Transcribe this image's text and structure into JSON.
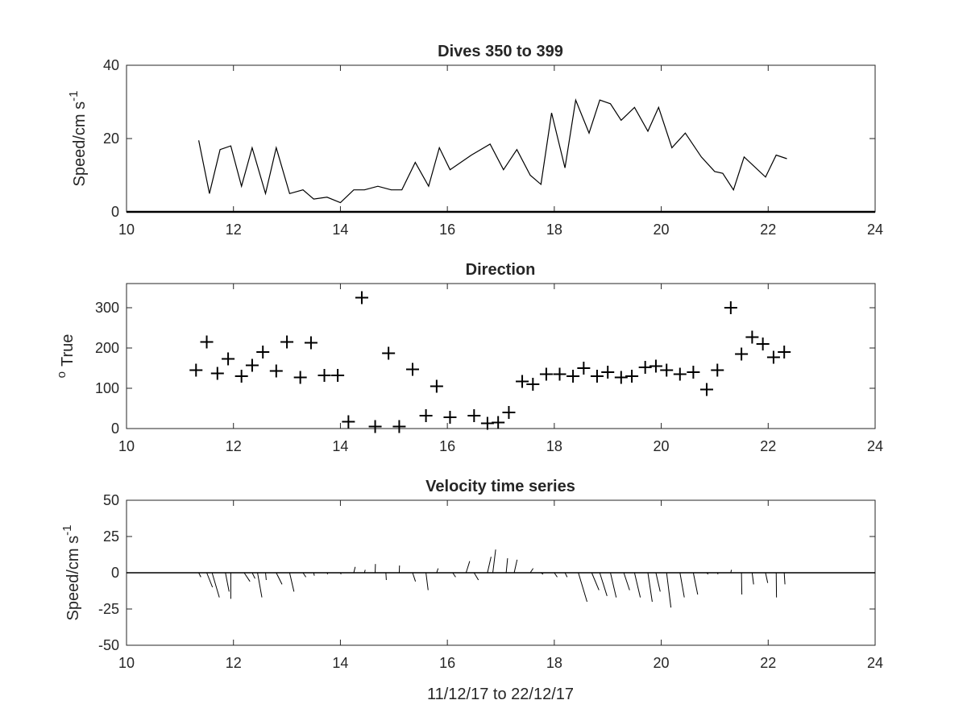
{
  "chart_data": [
    {
      "type": "line",
      "title": "Dives 350 to 399",
      "xlabel": "",
      "ylabel": "Speed/cm s",
      "ylabel_superscript": "-1",
      "xlim": [
        10,
        24
      ],
      "ylim": [
        0,
        40
      ],
      "xticks": [
        "10",
        "12",
        "14",
        "16",
        "18",
        "20",
        "22",
        "24"
      ],
      "yticks": [
        "0",
        "20",
        "40"
      ],
      "series": [
        {
          "x": [
            11.35,
            11.55,
            11.75,
            11.95,
            12.15,
            12.35,
            12.6,
            12.8,
            13.05,
            13.3,
            13.5,
            13.75,
            14.0,
            14.25,
            14.45,
            14.7,
            14.95,
            15.15,
            15.4,
            15.65,
            15.85,
            16.05,
            16.45,
            16.8,
            17.05,
            17.3,
            17.55,
            17.75,
            17.95,
            18.2,
            18.4,
            18.65,
            18.85,
            19.05,
            19.25,
            19.5,
            19.75,
            19.95,
            20.2,
            20.45,
            20.75,
            21.0,
            21.15,
            21.35,
            21.55,
            21.95,
            22.15,
            22.35
          ],
          "values": [
            19.5,
            5,
            17,
            18,
            7,
            17.5,
            5,
            17.5,
            5,
            6,
            3.5,
            4,
            2.5,
            6,
            6,
            7,
            6,
            6,
            13.5,
            7,
            17.5,
            11.5,
            15.5,
            18.5,
            11.5,
            17,
            10,
            7.5,
            27,
            12,
            30.5,
            21.5,
            30.5,
            29.5,
            25,
            28.5,
            22,
            28.5,
            17.5,
            21.5,
            15,
            11,
            10.5,
            6,
            15,
            9.5,
            15.5,
            14.5
          ]
        }
      ]
    },
    {
      "type": "scatter",
      "title": "Direction",
      "xlabel": "",
      "ylabel": "True",
      "ylabel_prefix_superscript": "o",
      "xlim": [
        10,
        24
      ],
      "ylim": [
        0,
        360
      ],
      "xticks": [
        "10",
        "12",
        "14",
        "16",
        "18",
        "20",
        "22",
        "24"
      ],
      "yticks": [
        "0",
        "100",
        "200",
        "300"
      ],
      "marker": "+",
      "series": [
        {
          "x": [
            11.3,
            11.5,
            11.7,
            11.9,
            12.15,
            12.35,
            12.55,
            12.8,
            13.0,
            13.25,
            13.45,
            13.7,
            13.95,
            14.15,
            14.4,
            14.65,
            14.9,
            15.1,
            15.35,
            15.6,
            15.8,
            16.05,
            16.5,
            16.75,
            16.95,
            17.15,
            17.4,
            17.6,
            17.85,
            18.1,
            18.35,
            18.55,
            18.8,
            19.0,
            19.25,
            19.45,
            19.7,
            19.9,
            20.1,
            20.35,
            20.6,
            20.85,
            21.05,
            21.3,
            21.5,
            21.7,
            21.9,
            22.1,
            22.3
          ],
          "values": [
            145,
            215,
            137,
            173,
            130,
            157,
            190,
            143,
            215,
            127,
            213,
            132,
            132,
            17,
            325,
            5,
            187,
            5,
            147,
            32,
            105,
            28,
            32,
            13,
            15,
            40,
            117,
            110,
            135,
            135,
            130,
            150,
            130,
            140,
            127,
            130,
            152,
            155,
            145,
            135,
            140,
            97,
            145,
            300,
            185,
            227,
            210,
            177,
            190
          ]
        }
      ]
    },
    {
      "type": "line",
      "subtype": "quiver",
      "title": "Velocity time series",
      "xlabel": "11/12/17 to 22/12/17",
      "ylabel": "Speed/cm s",
      "ylabel_superscript": "-1",
      "xlim": [
        10,
        24
      ],
      "ylim": [
        -50,
        50
      ],
      "xticks": [
        "10",
        "12",
        "14",
        "16",
        "18",
        "20",
        "22",
        "24"
      ],
      "yticks": [
        "-50",
        "-25",
        "0",
        "25",
        "50"
      ],
      "vectors": [
        {
          "x": 11.35,
          "u": 1.5,
          "v": -3
        },
        {
          "x": 11.5,
          "u": 4,
          "v": -10
        },
        {
          "x": 11.6,
          "u": 5,
          "v": -17
        },
        {
          "x": 11.85,
          "u": 2.5,
          "v": -13
        },
        {
          "x": 11.95,
          "u": 0,
          "v": -18
        },
        {
          "x": 12.2,
          "u": 4,
          "v": -6
        },
        {
          "x": 12.35,
          "u": 2,
          "v": -4
        },
        {
          "x": 12.45,
          "u": 3,
          "v": -17
        },
        {
          "x": 12.6,
          "u": 0.5,
          "v": -5
        },
        {
          "x": 12.8,
          "u": 4,
          "v": -8
        },
        {
          "x": 13.05,
          "u": 3,
          "v": -13
        },
        {
          "x": 13.3,
          "u": 2,
          "v": -3
        },
        {
          "x": 13.5,
          "u": 0.5,
          "v": -2
        },
        {
          "x": 13.75,
          "u": 0.5,
          "v": -1
        },
        {
          "x": 14.0,
          "u": 0.5,
          "v": -1
        },
        {
          "x": 14.25,
          "u": 1,
          "v": 4
        },
        {
          "x": 14.45,
          "u": 0.5,
          "v": 2
        },
        {
          "x": 14.65,
          "u": 0.2,
          "v": 6
        },
        {
          "x": 14.85,
          "u": 0.3,
          "v": -5
        },
        {
          "x": 15.1,
          "u": 0.2,
          "v": 5
        },
        {
          "x": 15.35,
          "u": 2,
          "v": -6
        },
        {
          "x": 15.6,
          "u": 1.5,
          "v": -12
        },
        {
          "x": 15.8,
          "u": 1,
          "v": 3
        },
        {
          "x": 16.1,
          "u": 2,
          "v": -3
        },
        {
          "x": 16.35,
          "u": 2.5,
          "v": 8
        },
        {
          "x": 16.5,
          "u": 3,
          "v": -5
        },
        {
          "x": 16.75,
          "u": 2.5,
          "v": 11
        },
        {
          "x": 16.85,
          "u": 2,
          "v": 16
        },
        {
          "x": 17.1,
          "u": 1,
          "v": 10
        },
        {
          "x": 17.25,
          "u": 2,
          "v": 9
        },
        {
          "x": 17.55,
          "u": 2,
          "v": 3
        },
        {
          "x": 17.75,
          "u": 1.5,
          "v": -1
        },
        {
          "x": 18.0,
          "u": 2,
          "v": -3
        },
        {
          "x": 18.2,
          "u": 1.5,
          "v": -3
        },
        {
          "x": 18.45,
          "u": 6,
          "v": -20
        },
        {
          "x": 18.7,
          "u": 5,
          "v": -12
        },
        {
          "x": 18.85,
          "u": 5,
          "v": -16
        },
        {
          "x": 19.05,
          "u": 4,
          "v": -17
        },
        {
          "x": 19.3,
          "u": 4,
          "v": -12
        },
        {
          "x": 19.5,
          "u": 4,
          "v": -17
        },
        {
          "x": 19.75,
          "u": 3,
          "v": -20
        },
        {
          "x": 19.9,
          "u": 3,
          "v": -13
        },
        {
          "x": 20.1,
          "u": 3,
          "v": -24
        },
        {
          "x": 20.35,
          "u": 3,
          "v": -17
        },
        {
          "x": 20.6,
          "u": 3,
          "v": -15
        },
        {
          "x": 20.85,
          "u": 1,
          "v": -1
        },
        {
          "x": 21.05,
          "u": 0.5,
          "v": -1
        },
        {
          "x": 21.3,
          "u": 0.5,
          "v": 2
        },
        {
          "x": 21.5,
          "u": 0.3,
          "v": -15
        },
        {
          "x": 21.7,
          "u": 1,
          "v": -8
        },
        {
          "x": 21.95,
          "u": 1.5,
          "v": -7
        },
        {
          "x": 22.15,
          "u": 0.2,
          "v": -17
        },
        {
          "x": 22.3,
          "u": 0.5,
          "v": -8
        }
      ]
    }
  ]
}
